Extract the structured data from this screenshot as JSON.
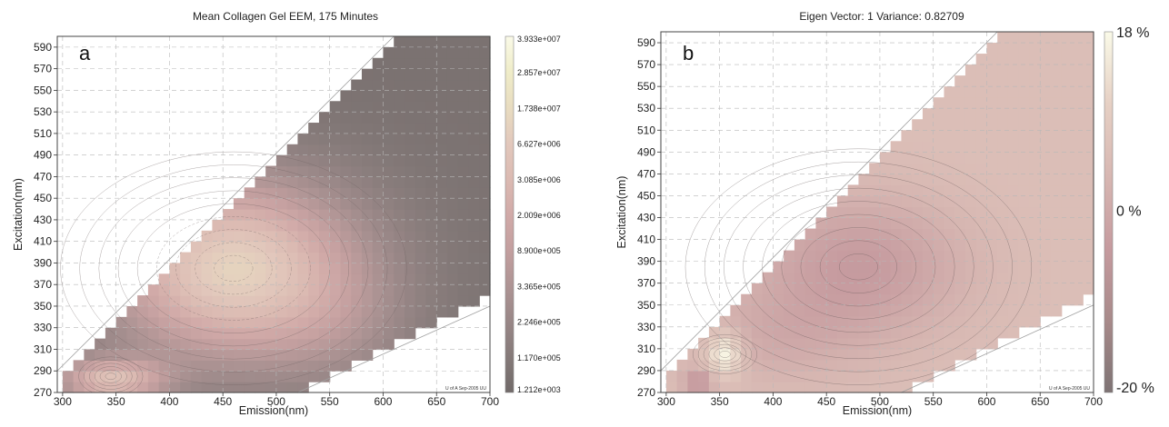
{
  "chart_data": [
    {
      "type": "heatmap",
      "panel_label": "a",
      "title": "Mean Collagen Gel EEM, 175 Minutes",
      "xlabel": "Emission(nm)",
      "ylabel": "Excitation(nm)",
      "xlim": [
        295,
        700
      ],
      "ylim": [
        270,
        600
      ],
      "x_ticks": [
        300,
        350,
        400,
        450,
        500,
        550,
        600,
        650,
        700
      ],
      "y_ticks": [
        270,
        290,
        310,
        330,
        350,
        370,
        390,
        410,
        430,
        450,
        470,
        490,
        510,
        530,
        550,
        570,
        590
      ],
      "grid": true,
      "colorbar": {
        "labels": [
          "3.933e+007",
          "2.857e+007",
          "1.738e+007",
          "6.627e+006",
          "3.085e+006",
          "2.009e+006",
          "8.900e+005",
          "3.365e+005",
          "2.246e+005",
          "1.170e+005",
          "1.212e+003"
        ],
        "colors": [
          "#fafae8",
          "#efecc8",
          "#e8dcc0",
          "#e2c8bc",
          "#dbbab2",
          "#d1aaa8",
          "#c39f9f",
          "#ae9494",
          "#998787",
          "#857a79",
          "#716a69"
        ]
      },
      "footnote": "U of A Sep-2005 UU",
      "features": [
        {
          "kind": "bright-peak",
          "em": 345,
          "ex": 285,
          "level": 1.0
        },
        {
          "kind": "broad-max",
          "em": 460,
          "ex": 385,
          "level": 0.72
        },
        {
          "kind": "low-region",
          "em": 640,
          "ex": 530,
          "level": 0.05
        }
      ]
    },
    {
      "type": "heatmap",
      "panel_label": "b",
      "title": "Eigen Vector: 1 Variance: 0.82709",
      "xlabel": "Emission(nm)",
      "ylabel": "Excitation(nm)",
      "xlim": [
        295,
        700
      ],
      "ylim": [
        270,
        600
      ],
      "x_ticks": [
        300,
        350,
        400,
        450,
        500,
        550,
        600,
        650,
        700
      ],
      "y_ticks": [
        270,
        290,
        310,
        330,
        350,
        370,
        390,
        410,
        430,
        450,
        470,
        490,
        510,
        530,
        550,
        570,
        590
      ],
      "grid": true,
      "colorbar": {
        "labels": [
          "18 %",
          "0 %",
          "-20 %"
        ],
        "colors": [
          "#fafae8",
          "#e6d0c4",
          "#d7b7b2",
          "#c69b9f",
          "#a88a8a",
          "#7e7374"
        ]
      },
      "footnote": "U of A Sep-2005 UU",
      "features": [
        {
          "kind": "negative-lobe",
          "em": 480,
          "ex": 385,
          "level": -13
        },
        {
          "kind": "positive-spot",
          "em": 355,
          "ex": 305,
          "level": 18
        },
        {
          "kind": "background",
          "em": 620,
          "ex": 520,
          "level": 0
        }
      ]
    }
  ]
}
